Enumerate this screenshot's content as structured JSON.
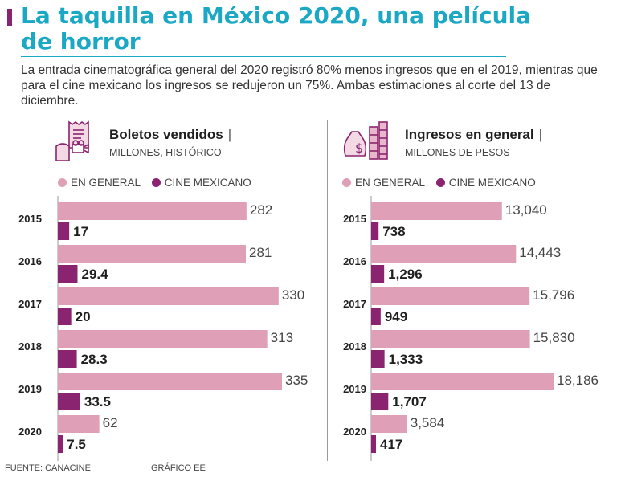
{
  "title": "La taquilla en México 2020, una película de horror",
  "subtitle": "La entrada cinematográfica general del 2020 registró 80% menos ingresos que en el 2019, mientras que para el cine mexicano los ingresos se redujeron un 75%. Ambas estimaciones al corte del 13 de diciembre.",
  "colors": {
    "accent": "#1aa8c4",
    "general": "#dfa0b7",
    "mexicano": "#8b2470"
  },
  "legend": {
    "general": "EN GENERAL",
    "mexicano": "CINE MEXICANO"
  },
  "footer": {
    "source": "FUENTE: CANACINE",
    "credit": "GRÁFICO EE"
  },
  "panels": [
    {
      "title": "Boletos vendidos",
      "unit": "MILLONES, HISTÓRICO",
      "icon": "ticket-projector-icon"
    },
    {
      "title": "Ingresos en general",
      "unit": "MILLONES DE PESOS",
      "icon": "money-bag-coins-icon"
    }
  ],
  "chart_data": [
    {
      "type": "bar",
      "title": "Boletos vendidos",
      "subtitle": "MILLONES, HISTÓRICO",
      "categories": [
        "2015",
        "2016",
        "2017",
        "2018",
        "2019",
        "2020"
      ],
      "series": [
        {
          "name": "EN GENERAL",
          "values": [
            282,
            281,
            330,
            313,
            335,
            62
          ],
          "labels": [
            "282",
            "281",
            "330",
            "313",
            "335",
            "62"
          ]
        },
        {
          "name": "CINE MEXICANO",
          "values": [
            17,
            29.4,
            20,
            28.3,
            33.5,
            7.5
          ],
          "labels": [
            "17",
            "29.4",
            "20",
            "28.3",
            "33.5",
            "7.5"
          ]
        }
      ],
      "orientation": "horizontal",
      "xlim": [
        0,
        335
      ]
    },
    {
      "type": "bar",
      "title": "Ingresos en general",
      "subtitle": "MILLONES DE PESOS",
      "categories": [
        "2015",
        "2016",
        "2017",
        "2018",
        "2019",
        "2020"
      ],
      "series": [
        {
          "name": "EN GENERAL",
          "values": [
            13040,
            14443,
            15796,
            15830,
            18186,
            3584
          ],
          "labels": [
            "13,040",
            "14,443",
            "15,796",
            "15,830",
            "18,186",
            "3,584"
          ]
        },
        {
          "name": "CINE MEXICANO",
          "values": [
            738,
            1296,
            949,
            1333,
            1707,
            417
          ],
          "labels": [
            "738",
            "1,296",
            "949",
            "1,333",
            "1,707",
            "417"
          ]
        }
      ],
      "orientation": "horizontal",
      "xlim": [
        0,
        18186
      ]
    }
  ]
}
